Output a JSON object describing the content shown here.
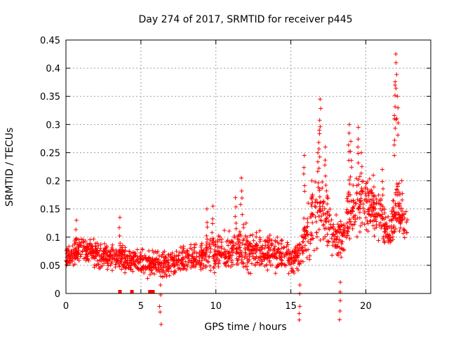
{
  "chart_data": {
    "type": "scatter",
    "title": "Day 274 of 2017, SRMTID for receiver p445",
    "xlabel": "GPS time / hours",
    "ylabel": "SRMTID / TECUs",
    "xlim": [
      0,
      24.33
    ],
    "ylim": [
      0,
      0.45
    ],
    "xticks": [
      0,
      5,
      10,
      15,
      20
    ],
    "xtick_labels": [
      "0",
      "5",
      "10",
      "15",
      "20"
    ],
    "yticks": [
      0,
      0.05,
      0.1,
      0.15,
      0.2,
      0.25,
      0.3,
      0.35,
      0.4,
      0.45
    ],
    "ytick_labels": [
      "0",
      "0.05",
      "0.1",
      "0.15",
      "0.2",
      "0.25",
      "0.3",
      "0.35",
      "0.4",
      "0.45"
    ],
    "grid": true,
    "marker": "+",
    "color": "#ff0000",
    "series": [
      {
        "name": "SRMTID",
        "envelope_hours": [
          0,
          1,
          2,
          3,
          4,
          5,
          6,
          7,
          8,
          9,
          10,
          11,
          12,
          13,
          14,
          15,
          15.5,
          16,
          16.5,
          17,
          17.5,
          18,
          18.5,
          19,
          19.5,
          20,
          20.5,
          21,
          21.5,
          22,
          22.5,
          22.8
        ],
        "envelope_median": [
          0.065,
          0.08,
          0.07,
          0.065,
          0.06,
          0.055,
          0.05,
          0.055,
          0.06,
          0.065,
          0.07,
          0.075,
          0.08,
          0.075,
          0.07,
          0.06,
          0.07,
          0.1,
          0.13,
          0.15,
          0.13,
          0.1,
          0.1,
          0.16,
          0.17,
          0.16,
          0.15,
          0.14,
          0.1,
          0.15,
          0.13,
          0.12
        ],
        "envelope_spread": [
          0.02,
          0.03,
          0.025,
          0.025,
          0.025,
          0.025,
          0.025,
          0.025,
          0.025,
          0.03,
          0.035,
          0.035,
          0.04,
          0.035,
          0.03,
          0.03,
          0.035,
          0.05,
          0.06,
          0.07,
          0.05,
          0.04,
          0.04,
          0.06,
          0.06,
          0.05,
          0.05,
          0.05,
          0.04,
          0.06,
          0.04,
          0.03
        ],
        "peaks": [
          {
            "x": 0.7,
            "y": 0.13
          },
          {
            "x": 3.6,
            "y": 0.135
          },
          {
            "x": 9.4,
            "y": 0.15
          },
          {
            "x": 9.8,
            "y": 0.155
          },
          {
            "x": 11.3,
            "y": 0.17
          },
          {
            "x": 11.7,
            "y": 0.205
          },
          {
            "x": 15.9,
            "y": 0.245
          },
          {
            "x": 16.4,
            "y": 0.2
          },
          {
            "x": 16.8,
            "y": 0.25
          },
          {
            "x": 16.9,
            "y": 0.29
          },
          {
            "x": 16.95,
            "y": 0.345
          },
          {
            "x": 17.3,
            "y": 0.26
          },
          {
            "x": 18.9,
            "y": 0.3
          },
          {
            "x": 19.0,
            "y": 0.27
          },
          {
            "x": 19.5,
            "y": 0.295
          },
          {
            "x": 19.7,
            "y": 0.25
          },
          {
            "x": 20.5,
            "y": 0.21
          },
          {
            "x": 21.1,
            "y": 0.22
          },
          {
            "x": 21.9,
            "y": 0.31
          },
          {
            "x": 21.95,
            "y": 0.37
          },
          {
            "x": 22.0,
            "y": 0.425
          },
          {
            "x": 22.1,
            "y": 0.35
          },
          {
            "x": 22.4,
            "y": 0.2
          },
          {
            "x": 18.3,
            "y": 0.02
          },
          {
            "x": 15.6,
            "y": 0.015
          },
          {
            "x": 6.3,
            "y": 0.015
          }
        ],
        "zero_markers_hours": [
          3.6,
          4.4,
          5.6,
          5.8
        ]
      }
    ]
  }
}
